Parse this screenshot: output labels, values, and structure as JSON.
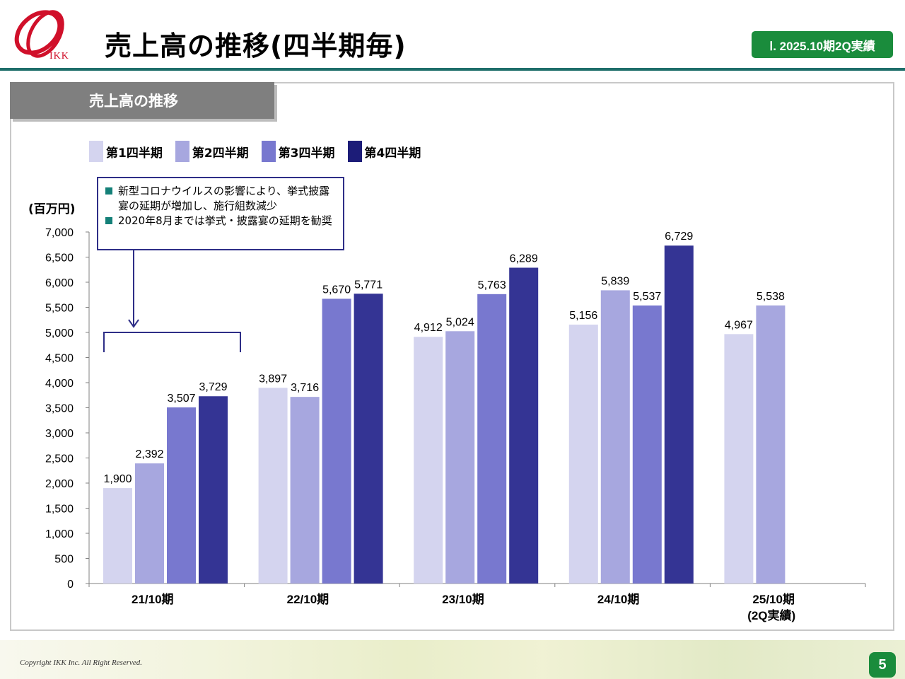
{
  "header": {
    "title": "売上高の推移(四半期毎)",
    "section_badge": "Ⅰ. 2025.10期2Q実績",
    "logo_text": "IKK"
  },
  "panel": {
    "title": "売上高の推移"
  },
  "callout": {
    "items": [
      "新型コロナウイルスの影響により、挙式披露宴の延期が増加し、施行組数減少",
      "2020年8月までは挙式・披露宴の延期を勧奨"
    ]
  },
  "footer": {
    "copyright": "Copyright IKK Inc. All Right Reserved.",
    "page": "5"
  },
  "colors": {
    "q1": "#d4d4ef",
    "q2": "#a7a7df",
    "q3": "#7878cf",
    "q4": "#343494",
    "accent_green": "#1a8c3c",
    "rule": "#1e6e6a"
  },
  "chart_data": {
    "type": "bar",
    "unit": "(百万円)",
    "categories": [
      "21/10期",
      "22/10期",
      "23/10期",
      "24/10期",
      "25/10期"
    ],
    "category_sublabels": [
      "",
      "",
      "",
      "",
      "(2Q実績)"
    ],
    "series": [
      {
        "name": "第1四半期",
        "values": [
          1900,
          3897,
          4912,
          5156,
          4967
        ]
      },
      {
        "name": "第2四半期",
        "values": [
          2392,
          3716,
          5024,
          5839,
          5538
        ]
      },
      {
        "name": "第3四半期",
        "values": [
          3507,
          5670,
          5763,
          5537,
          null
        ]
      },
      {
        "name": "第4四半期",
        "values": [
          3729,
          5771,
          6289,
          6729,
          null
        ]
      }
    ],
    "data_labels": [
      [
        "1,900",
        "2,392",
        "3,507",
        "3,729"
      ],
      [
        "3,897",
        "3,716",
        "5,670",
        "5,771"
      ],
      [
        "4,912",
        "5,024",
        "5,763",
        "6,289"
      ],
      [
        "5,156",
        "5,839",
        "5,537",
        "6,729"
      ],
      [
        "4,967",
        "5,538",
        "",
        ""
      ]
    ],
    "ylim": [
      0,
      7000
    ],
    "yticks": [
      0,
      500,
      1000,
      1500,
      2000,
      2500,
      3000,
      3500,
      4000,
      4500,
      5000,
      5500,
      6000,
      6500,
      7000
    ],
    "ytick_labels": [
      "0",
      "500",
      "1,000",
      "1,500",
      "2,000",
      "2,500",
      "3,000",
      "3,500",
      "4,000",
      "4,500",
      "5,000",
      "5,500",
      "6,000",
      "6,500",
      "7,000"
    ],
    "grid": false,
    "legend_position": "top-left"
  }
}
